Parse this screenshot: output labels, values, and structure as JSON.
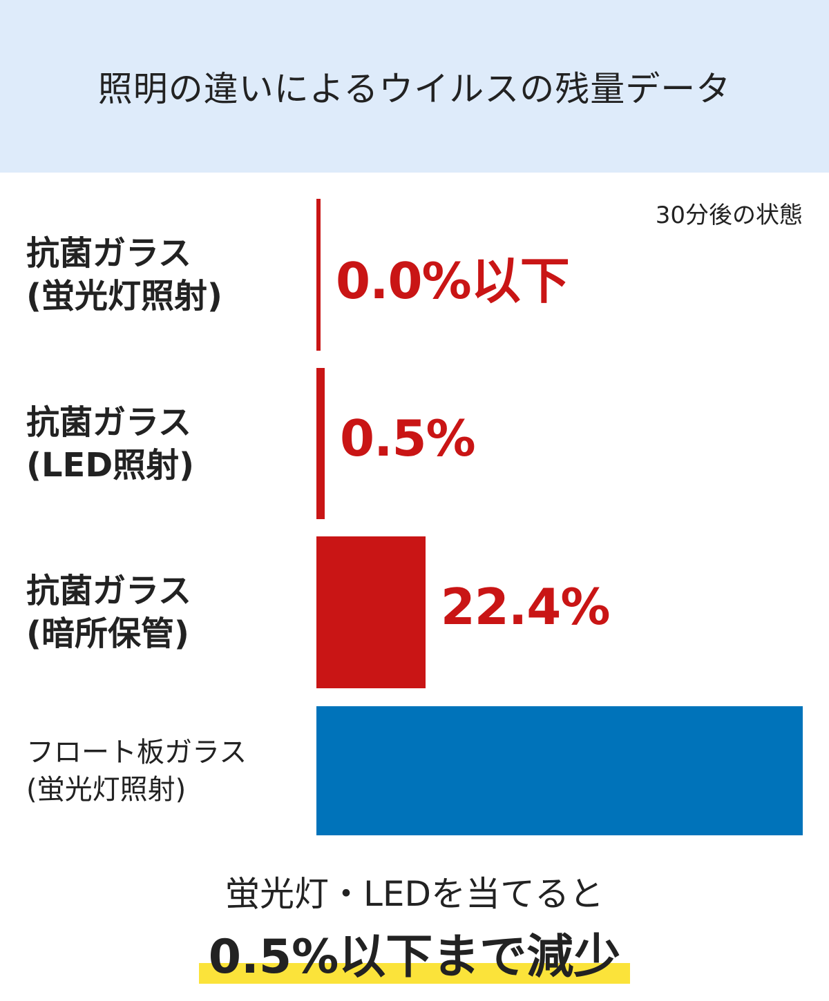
{
  "title": "照明の違いによるウイルスの残量データ",
  "colors": {
    "header_bg": "#deebfa",
    "antibacterial": "#c91515",
    "float": "#0073ba",
    "highlight": "#fbe33a"
  },
  "chart_data": {
    "type": "bar",
    "orientation": "horizontal",
    "title": "照明の違いによるウイルスの残量データ",
    "note": "30分後の状態",
    "categories": [
      [
        "抗菌ガラス",
        "(蛍光灯照射)"
      ],
      [
        "抗菌ガラス",
        "(LED照射)"
      ],
      [
        "抗菌ガラス",
        "(暗所保管)"
      ],
      [
        "フロート板ガラス",
        "(蛍光灯照射)"
      ]
    ],
    "values": [
      0.0,
      0.5,
      22.4,
      100
    ],
    "value_labels": [
      "0.0%以下",
      "0.5%",
      "22.4%",
      ""
    ],
    "xlim": [
      0,
      100
    ],
    "grid": false
  },
  "summary": {
    "line1": "蛍光灯・LEDを当てると",
    "line2": "0.5%以下まで減少"
  }
}
